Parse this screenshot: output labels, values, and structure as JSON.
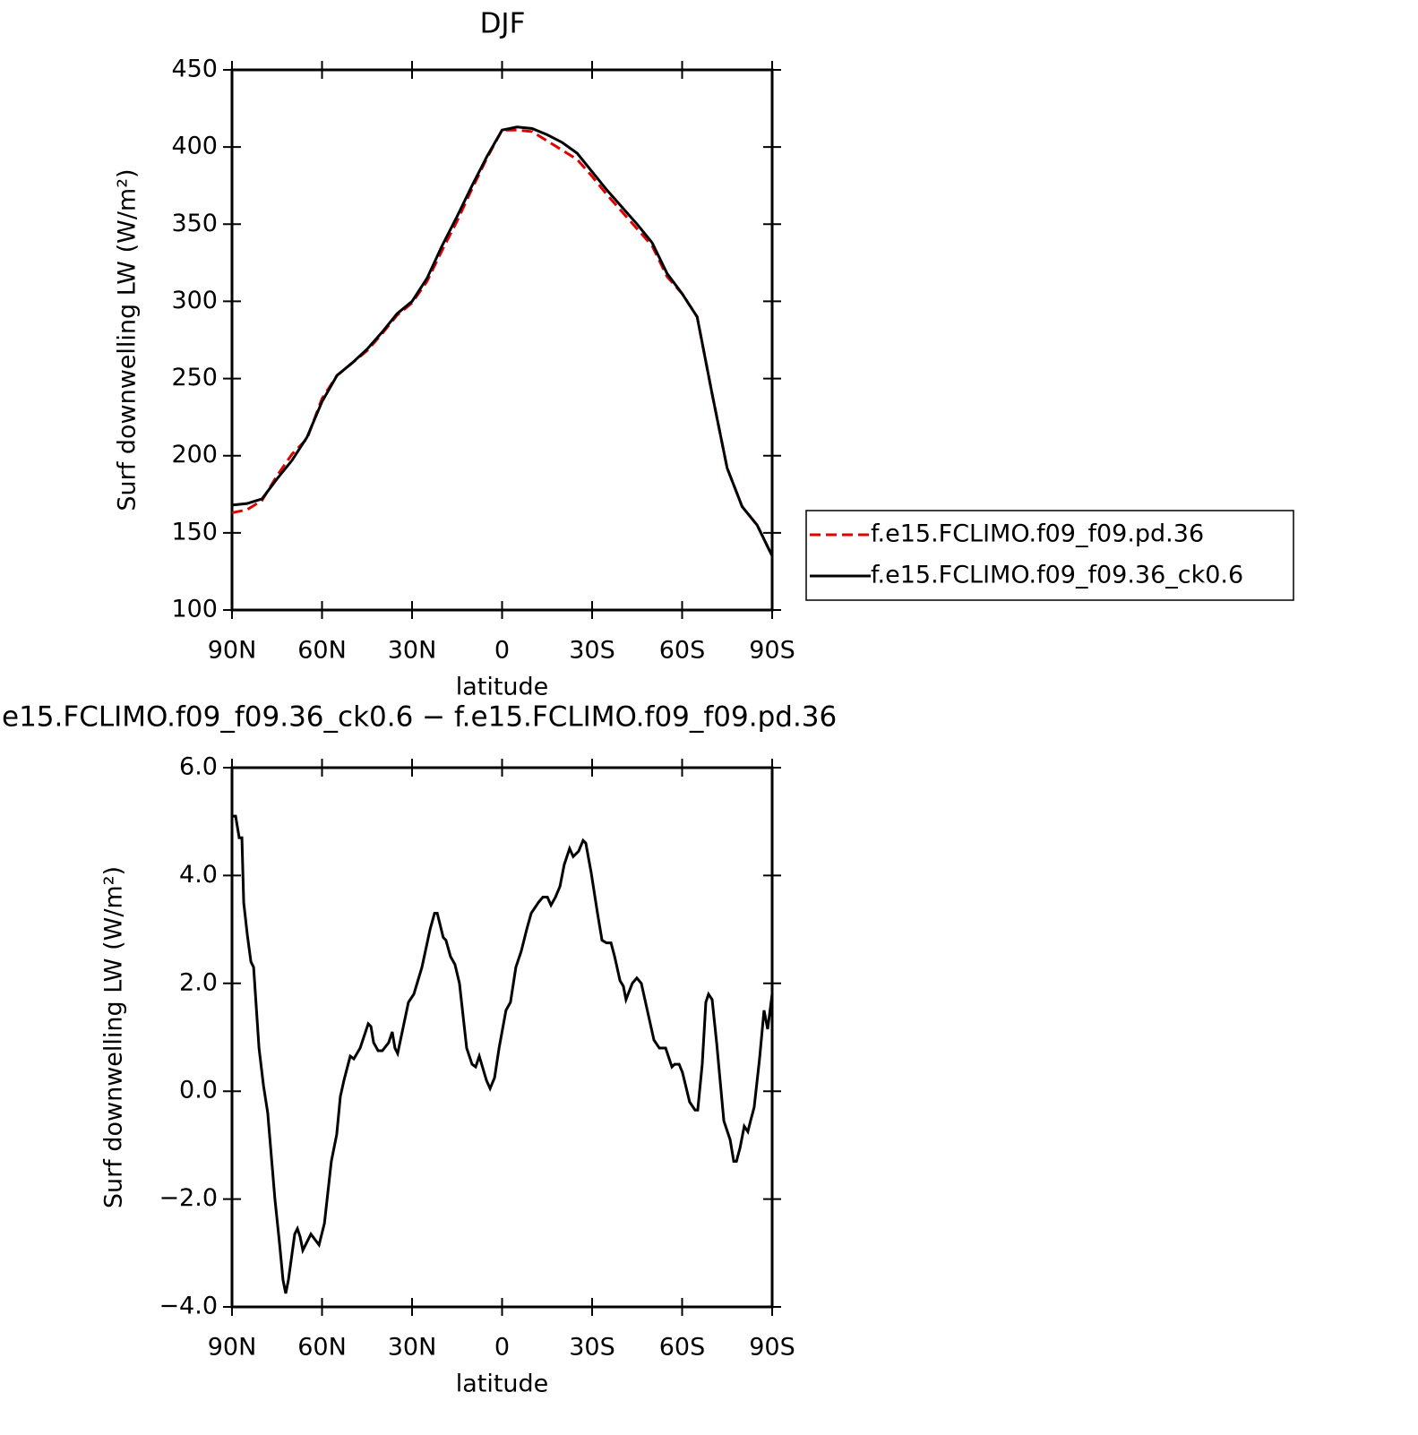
{
  "chart_data": [
    {
      "type": "line",
      "title": "DJF",
      "xlabel": "latitude",
      "ylabel": "Surf downwelling LW (W/m²)",
      "x": [
        90,
        85,
        80,
        75,
        70,
        65,
        60,
        55,
        50,
        45,
        40,
        35,
        30,
        25,
        20,
        15,
        10,
        5,
        0,
        -5,
        -10,
        -15,
        -20,
        -25,
        -30,
        -35,
        -40,
        -45,
        -50,
        -55,
        -60,
        -65,
        -70,
        -75,
        -80,
        -85,
        -90
      ],
      "series": [
        {
          "name": "f.e15.FCLIMO.f09_f09.pd.36",
          "color": "#e00000",
          "linestyle": "dashed",
          "values": [
            163,
            165,
            171,
            187,
            201,
            211,
            237,
            252,
            260,
            268,
            279,
            291,
            299,
            313,
            333,
            352,
            373,
            393,
            411,
            411,
            410,
            404,
            398,
            392,
            381,
            369,
            358,
            347,
            336,
            316,
            305,
            290,
            240,
            192,
            167,
            155,
            135
          ]
        },
        {
          "name": "f.e15.FCLIMO.f09_f09.36_ck0.6",
          "color": "#000000",
          "linestyle": "solid",
          "values": [
            168,
            169,
            172,
            185,
            197,
            212,
            235,
            252,
            260,
            269,
            280,
            292,
            300,
            315,
            336,
            355,
            375,
            394,
            411,
            413,
            412,
            408,
            403,
            396,
            384,
            372,
            361,
            350,
            338,
            318,
            305,
            290,
            240,
            192,
            167,
            155,
            135
          ]
        }
      ],
      "xlim": [
        90,
        -90
      ],
      "xticks": [
        {
          "value": 90,
          "label": "90N"
        },
        {
          "value": 60,
          "label": "60N"
        },
        {
          "value": 30,
          "label": "30N"
        },
        0,
        {
          "value": -30,
          "label": "30S"
        },
        {
          "value": -60,
          "label": "60S"
        },
        {
          "value": -90,
          "label": "90S"
        }
      ],
      "ylim": [
        100,
        450
      ],
      "yticks": [
        100,
        150,
        200,
        250,
        300,
        350,
        400,
        450
      ],
      "legend": "right"
    },
    {
      "type": "line",
      "title": "e15.FCLIMO.f09_f09.36_ck0.6 − f.e15.FCLIMO.f09_f09.pd.36",
      "xlabel": "latitude",
      "ylabel": "Surf downwelling LW (W/m²)",
      "x": [
        90,
        88.8,
        87.6,
        86.7,
        86.1,
        84.9,
        83.7,
        82.8,
        81.0,
        79.5,
        78.1,
        75.7,
        74.2,
        73.0,
        72.1,
        71.2,
        69.1,
        68.2,
        67.3,
        66.4,
        63.7,
        61.0,
        59.2,
        56.9,
        55.1,
        53.9,
        52.7,
        50.6,
        49.4,
        47.3,
        44.6,
        43.7,
        42.8,
        41.3,
        39.9,
        37.8,
        36.6,
        35.7,
        34.8,
        31.2,
        29.4,
        26.7,
        24.0,
        22.5,
        21.6,
        19.6,
        18.7,
        17.2,
        15.7,
        14.2,
        13.0,
        11.8,
        10.0,
        8.8,
        7.6,
        5.2,
        4.0,
        2.5,
        1.0,
        -1.3,
        -2.8,
        -4.6,
        -6.4,
        -8.2,
        -9.7,
        -12.1,
        -13.6,
        -15.1,
        -16.3,
        -17.8,
        -19.3,
        -20.7,
        -22.5,
        -23.7,
        -25.5,
        -27.0,
        -27.9,
        -29.7,
        -31.8,
        -33.3,
        -34.8,
        -36.3,
        -37.5,
        -39.3,
        -40.4,
        -41.3,
        -43.4,
        -44.9,
        -46.4,
        -48.2,
        -50.6,
        -52.4,
        -54.5,
        -56.6,
        -57.5,
        -59.0,
        -60.1,
        -62.5,
        -64.3,
        -65.2,
        -66.7,
        -67.9,
        -68.8,
        -70.0,
        -71.5,
        -73.9,
        -76.0,
        -77.2,
        -78.1,
        -79.3,
        -80.7,
        -81.9,
        -82.8,
        -84.0,
        -85.8,
        -87.3,
        -88.5,
        -90
      ],
      "values": [
        5.1,
        5.1,
        4.7,
        4.7,
        3.5,
        2.9,
        2.4,
        2.3,
        0.8,
        0.1,
        -0.4,
        -2.0,
        -2.8,
        -3.5,
        -3.75,
        -3.5,
        -2.65,
        -2.55,
        -2.7,
        -2.95,
        -2.65,
        -2.85,
        -2.45,
        -1.3,
        -0.8,
        -0.1,
        0.2,
        0.65,
        0.6,
        0.8,
        1.25,
        1.2,
        0.9,
        0.75,
        0.75,
        0.9,
        1.1,
        0.8,
        0.7,
        1.65,
        1.8,
        2.3,
        3.0,
        3.3,
        3.3,
        2.85,
        2.8,
        2.5,
        2.35,
        2.0,
        1.4,
        0.8,
        0.5,
        0.45,
        0.65,
        0.2,
        0.05,
        0.25,
        0.8,
        1.5,
        1.65,
        2.3,
        2.6,
        3.0,
        3.3,
        3.5,
        3.6,
        3.6,
        3.45,
        3.6,
        3.8,
        4.2,
        4.5,
        4.35,
        4.45,
        4.65,
        4.6,
        4.05,
        3.3,
        2.8,
        2.75,
        2.75,
        2.5,
        2.05,
        1.95,
        1.7,
        2.0,
        2.1,
        2.0,
        1.55,
        0.95,
        0.8,
        0.8,
        0.45,
        0.5,
        0.5,
        0.35,
        -0.2,
        -0.35,
        -0.35,
        0.5,
        1.65,
        1.8,
        1.7,
        0.9,
        -0.55,
        -0.9,
        -1.3,
        -1.3,
        -1.05,
        -0.65,
        -0.75,
        -0.55,
        -0.3,
        0.6,
        1.5,
        1.15,
        1.8
      ],
      "color": "#000000",
      "xlim": [
        90,
        -90
      ],
      "xticks": [
        {
          "value": 90,
          "label": "90N"
        },
        {
          "value": 60,
          "label": "60N"
        },
        {
          "value": 30,
          "label": "30N"
        },
        0,
        {
          "value": -30,
          "label": "30S"
        },
        {
          "value": -60,
          "label": "60S"
        },
        {
          "value": -90,
          "label": "90S"
        }
      ],
      "ylim": [
        -4,
        6
      ],
      "yticks": [
        {
          "value": 6,
          "label": "6.0"
        },
        {
          "value": 4,
          "label": "4.0"
        },
        {
          "value": 2,
          "label": "2.0"
        },
        {
          "value": 0,
          "label": "0.0"
        },
        {
          "value": -2,
          "label": "−2.0"
        },
        {
          "value": -4,
          "label": "−4.0"
        }
      ]
    }
  ]
}
